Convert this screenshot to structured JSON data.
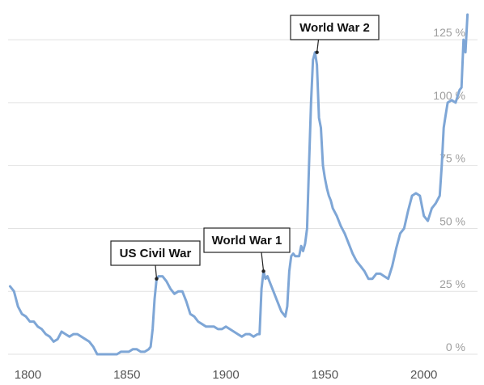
{
  "chart_data": {
    "type": "line",
    "title": "",
    "xlabel": "",
    "ylabel": "",
    "xlim": [
      1790,
      2023
    ],
    "ylim": [
      0,
      135
    ],
    "grid": true,
    "y_tick_values": [
      0,
      25,
      50,
      75,
      100,
      125
    ],
    "y_tick_labels": [
      "0 %",
      "25 %",
      "50 %",
      "75 %",
      "100 %",
      "125 %"
    ],
    "x_tick_values": [
      1800,
      1850,
      1900,
      1950,
      2000
    ],
    "x_tick_labels": [
      "1800",
      "1850",
      "1900",
      "1950",
      "2000"
    ],
    "line_color": "#7ea6d6",
    "series": [
      {
        "x": [
          1791,
          1793,
          1795,
          1797,
          1799,
          1801,
          1803,
          1805,
          1807,
          1809,
          1811,
          1813,
          1815,
          1817,
          1819,
          1821,
          1823,
          1825,
          1827,
          1829,
          1831,
          1833,
          1835,
          1837,
          1839,
          1841,
          1843,
          1845,
          1847,
          1849,
          1851,
          1853,
          1855,
          1857,
          1859,
          1861,
          1862,
          1863,
          1864,
          1865,
          1866,
          1868,
          1870,
          1872,
          1874,
          1876,
          1878,
          1880,
          1882,
          1884,
          1886,
          1888,
          1890,
          1892,
          1894,
          1896,
          1898,
          1900,
          1902,
          1904,
          1906,
          1908,
          1910,
          1912,
          1914,
          1916,
          1917,
          1918,
          1919,
          1920,
          1921,
          1922,
          1924,
          1926,
          1928,
          1930,
          1931,
          1932,
          1933,
          1934,
          1935,
          1936,
          1937,
          1938,
          1939,
          1940,
          1941,
          1942,
          1943,
          1944,
          1945,
          1946,
          1947,
          1948,
          1949,
          1950,
          1951,
          1952,
          1953,
          1954,
          1956,
          1958,
          1960,
          1962,
          1964,
          1966,
          1968,
          1970,
          1972,
          1974,
          1976,
          1978,
          1980,
          1982,
          1984,
          1986,
          1988,
          1990,
          1992,
          1994,
          1996,
          1998,
          2000,
          2002,
          2004,
          2006,
          2008,
          2009,
          2010,
          2011,
          2012,
          2014,
          2016,
          2018,
          2019,
          2020,
          2021,
          2022
        ],
        "y": [
          27,
          25,
          19,
          16,
          15,
          13,
          13,
          11,
          10,
          8,
          7,
          5,
          6,
          9,
          8,
          7,
          8,
          8,
          7,
          6,
          5,
          3,
          0,
          0,
          0,
          0,
          0,
          0,
          1,
          1,
          1,
          2,
          2,
          1,
          1,
          2,
          3,
          10,
          22,
          30,
          31,
          31,
          29,
          26,
          24,
          25,
          25,
          21,
          16,
          15,
          13,
          12,
          11,
          11,
          11,
          10,
          10,
          11,
          10,
          9,
          8,
          7,
          8,
          8,
          7,
          8,
          8,
          26,
          33,
          30,
          31,
          29,
          25,
          21,
          17,
          15,
          19,
          33,
          39,
          40,
          39,
          39,
          39,
          43,
          41,
          44,
          50,
          75,
          100,
          117,
          120,
          115,
          94,
          90,
          75,
          70,
          66,
          63,
          61,
          58,
          55,
          51,
          48,
          44,
          40,
          37,
          35,
          33,
          30,
          30,
          32,
          32,
          31,
          30,
          35,
          42,
          48,
          50,
          57,
          63,
          64,
          63,
          55,
          53,
          58,
          60,
          63,
          75,
          90,
          95,
          100,
          101,
          100,
          105,
          106,
          125,
          120,
          135
        ]
      }
    ],
    "annotations": [
      {
        "label": "US Civil War",
        "x": 1865,
        "y": 30
      },
      {
        "label": "World War 1",
        "x": 1919,
        "y": 33
      },
      {
        "label": "World War 2",
        "x": 1946,
        "y": 120
      }
    ]
  }
}
